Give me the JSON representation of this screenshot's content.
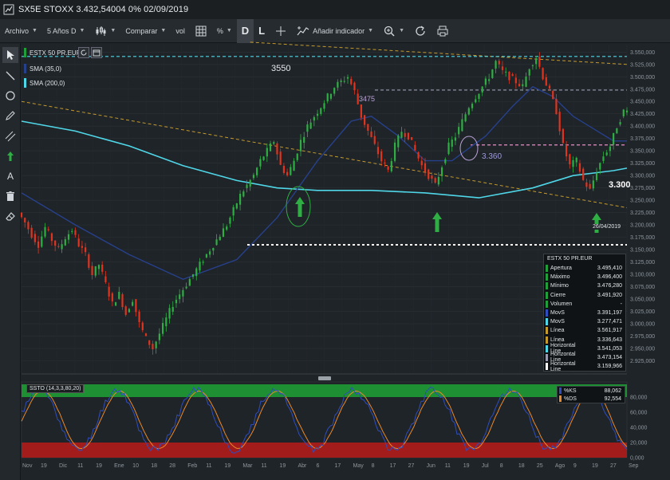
{
  "window": {
    "title": "SX5E STOXX 3.432,54004 0% 02/09/2019"
  },
  "toolbar": {
    "file_label": "Archivo",
    "period_label": "5 Años D",
    "chart_type_icon": "candles-icon",
    "compare_label": "Comparar",
    "volume_label": "vol",
    "grid_icon": "grid-icon",
    "percent_label": "%",
    "D_label": "D",
    "L_label": "L",
    "crosshair_icon": "crosshair-icon",
    "add_indicator_label": "Añadir indicador",
    "zoom_icon": "zoom-icon",
    "refresh_icon": "refresh-icon",
    "print_icon": "print-icon"
  },
  "left_tools": [
    {
      "name": "pointer-tool",
      "icon": "cursor-icon"
    },
    {
      "name": "line-tool",
      "icon": "line-icon"
    },
    {
      "name": "circle-tool",
      "icon": "circle-icon"
    },
    {
      "name": "pencil-tool",
      "icon": "pencil-icon"
    },
    {
      "name": "channel-tool",
      "icon": "channel-icon"
    },
    {
      "name": "arrow-tool",
      "icon": "arrow-up-icon"
    },
    {
      "name": "text-tool",
      "icon": "text-icon",
      "label": "A"
    },
    {
      "name": "delete-tool",
      "icon": "trash-icon"
    },
    {
      "name": "eraser-tool",
      "icon": "eraser-icon"
    }
  ],
  "legend": {
    "series_label": "ESTX 50 PR.EUR",
    "sma1_label": "SMA (35,0)",
    "sma2_label": "SMA (200,0)",
    "series_color": "#1f9e3a",
    "sma1_color": "#27408b",
    "sma2_color": "#4fd7e8"
  },
  "annotations": {
    "label_3550": "3550",
    "label_3475": "3475",
    "label_3360": "3.360",
    "label_3300": "3.300",
    "date_label": "26/04/2019"
  },
  "databox": {
    "header": "ESTX 50 PR.EUR",
    "rows": [
      {
        "k": "Apertura",
        "v": "3.495,410",
        "color": "#1f9e3a"
      },
      {
        "k": "Máximo",
        "v": "3.496,400",
        "color": "#1f9e3a"
      },
      {
        "k": "Mínimo",
        "v": "3.476,280",
        "color": "#1f9e3a"
      },
      {
        "k": "Cierre",
        "v": "3.491,920",
        "color": "#1f9e3a"
      },
      {
        "k": "Volumen",
        "v": "-",
        "color": "#1f9e3a"
      },
      {
        "k": "MovS",
        "v": "3.391,197",
        "color": "#2f4dbf"
      },
      {
        "k": "MovS",
        "v": "3.277,471",
        "color": "#4fd7e8"
      },
      {
        "k": "Línea",
        "v": "3.561,917",
        "color": "#c59a2c"
      },
      {
        "k": "Línea",
        "v": "3.336,643",
        "color": "#c59a2c"
      },
      {
        "k": "Horizontal Line",
        "v": "3.541,053",
        "color": "#4fd7e8"
      },
      {
        "k": "Horizontal Line",
        "v": "3.473,154",
        "color": "#9a9ab0"
      },
      {
        "k": "Horizontal Line",
        "v": "3.159,966",
        "color": "#ffffff"
      }
    ]
  },
  "stochastic": {
    "label": "SSTO (14,3,3,80,20)",
    "rows": [
      {
        "k": "%KS",
        "v": "88,062",
        "color": "#2f4dbf"
      },
      {
        "k": "%DS",
        "v": "92,554",
        "color": "#e8892b"
      }
    ],
    "upper": 80,
    "lower": 20,
    "y_ticks": [
      "80,000",
      "60,000",
      "40,000",
      "20,000",
      "0,000"
    ]
  },
  "chart_data": {
    "type": "line",
    "title": "SX5E STOXX",
    "xlabel": "",
    "ylabel": "",
    "ylim": [
      2900,
      3565
    ],
    "y_ticks": [
      "3.550,000",
      "3.525,000",
      "3.500,000",
      "3.475,000",
      "3.450,000",
      "3.425,000",
      "3.400,000",
      "3.375,000",
      "3.350,000",
      "3.325,000",
      "3.300,000",
      "3.275,000",
      "3.250,000",
      "3.225,000",
      "3.200,000",
      "3.175,000",
      "3.150,000",
      "3.125,000",
      "3.100,000",
      "3.075,000",
      "3.050,000",
      "3.025,000",
      "3.000,000",
      "2.975,000",
      "2.950,000",
      "2.925,000"
    ],
    "x_ticks": [
      "Nov",
      "19",
      "Dic",
      "11",
      "19",
      "Ene",
      "10",
      "18",
      "28",
      "Feb",
      "11",
      "19",
      "Mar",
      "11",
      "19",
      "Abr",
      "6",
      "17",
      "May",
      "8",
      "17",
      "27",
      "Jun",
      "11",
      "19",
      "Jul",
      "8",
      "18",
      "25",
      "Ago",
      "9",
      "19",
      "27",
      "Sep"
    ],
    "series": [
      {
        "name": "ESTX 50 PR.EUR",
        "points": [
          [
            0,
            3225
          ],
          [
            5,
            3205
          ],
          [
            10,
            3180
          ],
          [
            15,
            3160
          ],
          [
            20,
            3195
          ],
          [
            25,
            3170
          ],
          [
            30,
            3150
          ],
          [
            35,
            3175
          ],
          [
            40,
            3190
          ],
          [
            45,
            3160
          ],
          [
            50,
            3140
          ],
          [
            55,
            3100
          ],
          [
            60,
            3120
          ],
          [
            65,
            3080
          ],
          [
            70,
            3040
          ],
          [
            75,
            3060
          ],
          [
            80,
            3020
          ],
          [
            85,
            3050
          ],
          [
            90,
            3000
          ],
          [
            95,
            2970
          ],
          [
            100,
            2950
          ],
          [
            105,
            2980
          ],
          [
            110,
            3010
          ],
          [
            115,
            3040
          ],
          [
            120,
            3060
          ],
          [
            125,
            3080
          ],
          [
            130,
            3100
          ],
          [
            135,
            3120
          ],
          [
            140,
            3140
          ],
          [
            145,
            3160
          ],
          [
            150,
            3180
          ],
          [
            155,
            3200
          ],
          [
            160,
            3230
          ],
          [
            165,
            3260
          ],
          [
            170,
            3280
          ],
          [
            175,
            3300
          ],
          [
            180,
            3330
          ],
          [
            185,
            3350
          ],
          [
            190,
            3370
          ],
          [
            195,
            3320
          ],
          [
            200,
            3300
          ],
          [
            205,
            3330
          ],
          [
            210,
            3370
          ],
          [
            215,
            3400
          ],
          [
            220,
            3420
          ],
          [
            225,
            3440
          ],
          [
            230,
            3460
          ],
          [
            235,
            3480
          ],
          [
            240,
            3490
          ],
          [
            245,
            3500
          ],
          [
            250,
            3470
          ],
          [
            255,
            3420
          ],
          [
            260,
            3390
          ],
          [
            265,
            3360
          ],
          [
            270,
            3330
          ],
          [
            275,
            3310
          ],
          [
            280,
            3360
          ],
          [
            285,
            3390
          ],
          [
            290,
            3380
          ],
          [
            295,
            3350
          ],
          [
            300,
            3320
          ],
          [
            305,
            3300
          ],
          [
            310,
            3280
          ],
          [
            315,
            3320
          ],
          [
            320,
            3360
          ],
          [
            325,
            3380
          ],
          [
            330,
            3410
          ],
          [
            335,
            3440
          ],
          [
            340,
            3460
          ],
          [
            345,
            3480
          ],
          [
            350,
            3500
          ],
          [
            355,
            3530
          ],
          [
            360,
            3510
          ],
          [
            365,
            3500
          ],
          [
            370,
            3490
          ],
          [
            375,
            3480
          ],
          [
            380,
            3520
          ],
          [
            385,
            3540
          ],
          [
            390,
            3500
          ],
          [
            395,
            3470
          ],
          [
            400,
            3430
          ],
          [
            405,
            3360
          ],
          [
            410,
            3320
          ],
          [
            415,
            3330
          ],
          [
            420,
            3290
          ],
          [
            425,
            3270
          ],
          [
            430,
            3310
          ],
          [
            435,
            3340
          ],
          [
            440,
            3360
          ],
          [
            445,
            3400
          ],
          [
            450,
            3430
          ]
        ]
      },
      {
        "name": "SMA (35,0)",
        "points": [
          [
            0,
            3265
          ],
          [
            40,
            3200
          ],
          [
            80,
            3140
          ],
          [
            120,
            3090
          ],
          [
            160,
            3130
          ],
          [
            190,
            3215
          ],
          [
            220,
            3330
          ],
          [
            245,
            3410
          ],
          [
            260,
            3420
          ],
          [
            280,
            3380
          ],
          [
            300,
            3330
          ],
          [
            320,
            3330
          ],
          [
            345,
            3380
          ],
          [
            365,
            3440
          ],
          [
            380,
            3480
          ],
          [
            395,
            3460
          ],
          [
            410,
            3420
          ],
          [
            425,
            3395
          ],
          [
            440,
            3370
          ],
          [
            450,
            3370
          ]
        ]
      },
      {
        "name": "SMA (200,0)",
        "points": [
          [
            0,
            3410
          ],
          [
            40,
            3390
          ],
          [
            80,
            3360
          ],
          [
            120,
            3320
          ],
          [
            160,
            3290
          ],
          [
            190,
            3275
          ],
          [
            220,
            3270
          ],
          [
            260,
            3270
          ],
          [
            300,
            3265
          ],
          [
            340,
            3255
          ],
          [
            380,
            3275
          ],
          [
            410,
            3300
          ],
          [
            440,
            3310
          ],
          [
            450,
            3315
          ]
        ]
      }
    ],
    "trend_lines": [
      {
        "label": "Línea",
        "from": [
          0,
          3450
        ],
        "to": [
          450,
          3235
        ]
      },
      {
        "label": "Línea",
        "from": [
          170,
          3570
        ],
        "to": [
          450,
          3525
        ]
      }
    ],
    "horizontal_lines": [
      3541.053,
      3473.154,
      3362,
      3159.966
    ]
  }
}
